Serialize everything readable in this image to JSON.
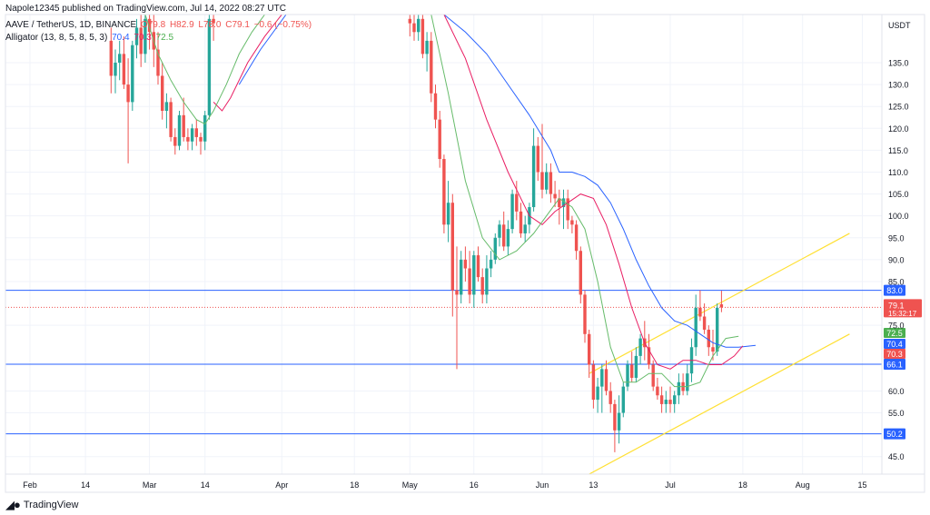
{
  "publish_line": "Napole12345 published on TradingView.com, Jul 14, 2022 08:27 UTC",
  "symbol_line": {
    "name": "AAVE / TetherUS, 1D, BINANCE",
    "o": "O79.8",
    "h": "H82.9",
    "l": "L78.0",
    "c": "C79.1",
    "chg": "−0.6 (−0.75%)"
  },
  "indicator_line": {
    "name": "Alligator (13, 8, 5, 8, 5, 3)",
    "jaw": "70.4",
    "teeth": "70.3",
    "lips": "72.5"
  },
  "footer_brand": "TradingView",
  "colors": {
    "up": "#26a69a",
    "down": "#ef5350",
    "jaw": "#2962ff",
    "teeth": "#e91e63",
    "lips": "#66bb6a",
    "hline": "#2962ff",
    "channel": "#ffe033",
    "price_line": "#ef5350"
  },
  "chart_data": {
    "type": "candlestick",
    "currency": "USDT",
    "ylim": [
      41,
      146
    ],
    "y_ticks": [
      "135.0",
      "130.0",
      "125.0",
      "120.0",
      "115.0",
      "110.0",
      "105.0",
      "100.0",
      "95.0",
      "90.0",
      "85.0",
      "75.0",
      "60.0",
      "55.0",
      "45.0"
    ],
    "x_ticks": [
      {
        "label": "Feb",
        "date": "2022-02-01"
      },
      {
        "label": "14",
        "date": "2022-02-14"
      },
      {
        "label": "Mar",
        "date": "2022-03-01"
      },
      {
        "label": "14",
        "date": "2022-03-14"
      },
      {
        "label": "Apr",
        "date": "2022-04-01"
      },
      {
        "label": "18",
        "date": "2022-04-18"
      },
      {
        "label": "May",
        "date": "2022-05-01"
      },
      {
        "label": "16",
        "date": "2022-05-16"
      },
      {
        "label": "Jun",
        "date": "2022-06-01"
      },
      {
        "label": "13",
        "date": "2022-06-13"
      },
      {
        "label": "Jul",
        "date": "2022-07-01"
      },
      {
        "label": "18",
        "date": "2022-07-18"
      },
      {
        "label": "Aug",
        "date": "2022-08-01"
      },
      {
        "label": "15",
        "date": "2022-08-15"
      }
    ],
    "horizontal_lines": [
      {
        "value": 83.0,
        "label": "83.0"
      },
      {
        "value": 66.1,
        "label": "66.1"
      },
      {
        "value": 50.2,
        "label": "50.2"
      }
    ],
    "price_label": {
      "value": 79.1,
      "label": "79.1",
      "countdown": "15:32:17"
    },
    "alligator_labels": [
      {
        "name": "Lips",
        "value": 72.5,
        "label": "72.5"
      },
      {
        "name": "Jaw",
        "value": 70.4,
        "label": "70.4"
      },
      {
        "name": "Teeth",
        "value": 70.3,
        "label": "70.3"
      }
    ],
    "channel": {
      "upper": [
        {
          "date": "2022-06-12",
          "value": 64.0
        },
        {
          "date": "2022-08-12",
          "value": 96.0
        }
      ],
      "lower": [
        {
          "date": "2022-06-12",
          "value": 41.0
        },
        {
          "date": "2022-08-12",
          "value": 73.0
        }
      ]
    },
    "candles": [
      [
        "2022-02-20",
        140,
        143,
        128,
        132
      ],
      [
        "2022-02-21",
        132,
        138,
        128,
        135
      ],
      [
        "2022-02-22",
        135,
        140,
        131,
        137
      ],
      [
        "2022-02-23",
        137,
        141,
        129,
        130
      ],
      [
        "2022-02-24",
        130,
        136,
        112,
        126
      ],
      [
        "2022-02-25",
        126,
        140,
        124,
        139
      ],
      [
        "2022-02-26",
        139,
        145,
        136,
        143
      ],
      [
        "2022-02-27",
        143,
        146,
        134,
        137
      ],
      [
        "2022-02-28",
        137,
        146,
        135,
        145
      ],
      [
        "2022-03-01",
        145,
        146,
        138,
        142
      ],
      [
        "2022-03-02",
        142,
        146,
        134,
        138
      ],
      [
        "2022-03-03",
        138,
        142,
        130,
        132
      ],
      [
        "2022-03-04",
        132,
        135,
        122,
        124
      ],
      [
        "2022-03-05",
        124,
        128,
        120,
        126
      ],
      [
        "2022-03-06",
        126,
        127,
        117,
        118
      ],
      [
        "2022-03-07",
        118,
        120,
        114,
        116
      ],
      [
        "2022-03-08",
        116,
        124,
        115,
        123
      ],
      [
        "2022-03-09",
        123,
        127,
        117,
        118
      ],
      [
        "2022-03-10",
        118,
        120,
        115,
        117
      ],
      [
        "2022-03-11",
        117,
        121,
        115,
        120
      ],
      [
        "2022-03-12",
        120,
        122,
        116,
        118
      ],
      [
        "2022-03-13",
        118,
        119,
        114,
        117
      ],
      [
        "2022-03-14",
        117,
        124,
        115,
        123
      ],
      [
        "2022-03-15",
        123,
        146,
        122,
        145
      ],
      [
        "2022-03-16",
        145,
        146,
        140,
        144
      ],
      [
        "2022-05-01",
        145,
        146,
        141,
        144
      ],
      [
        "2022-05-02",
        144,
        146,
        140,
        142
      ],
      [
        "2022-05-03",
        142,
        146,
        140,
        145
      ],
      [
        "2022-05-04",
        145,
        146,
        136,
        137
      ],
      [
        "2022-05-05",
        137,
        142,
        133,
        140
      ],
      [
        "2022-05-06",
        140,
        142,
        126,
        128
      ],
      [
        "2022-05-07",
        128,
        130,
        120,
        122
      ],
      [
        "2022-05-08",
        122,
        124,
        111,
        113
      ],
      [
        "2022-05-09",
        113,
        114,
        96,
        98
      ],
      [
        "2022-05-10",
        98,
        108,
        94,
        103
      ],
      [
        "2022-05-11",
        103,
        105,
        77,
        83
      ],
      [
        "2022-05-12",
        83,
        93,
        65,
        82
      ],
      [
        "2022-05-13",
        82,
        92,
        80,
        90
      ],
      [
        "2022-05-14",
        90,
        93,
        85,
        88
      ],
      [
        "2022-05-15",
        88,
        92,
        80,
        82
      ],
      [
        "2022-05-16",
        82,
        92,
        79,
        91
      ],
      [
        "2022-05-17",
        91,
        93,
        85,
        86
      ],
      [
        "2022-05-18",
        86,
        88,
        80,
        82
      ],
      [
        "2022-05-19",
        82,
        91,
        80,
        88
      ],
      [
        "2022-05-20",
        88,
        92,
        86,
        90
      ],
      [
        "2022-05-21",
        90,
        96,
        89,
        95
      ],
      [
        "2022-05-22",
        95,
        99,
        93,
        98
      ],
      [
        "2022-05-23",
        98,
        101,
        92,
        93
      ],
      [
        "2022-05-24",
        93,
        99,
        91,
        97
      ],
      [
        "2022-05-25",
        97,
        106,
        96,
        105
      ],
      [
        "2022-05-26",
        105,
        108,
        99,
        101
      ],
      [
        "2022-05-27",
        101,
        103,
        95,
        96
      ],
      [
        "2022-05-28",
        96,
        100,
        94,
        98
      ],
      [
        "2022-05-29",
        98,
        103,
        96,
        102
      ],
      [
        "2022-05-30",
        102,
        120,
        101,
        116
      ],
      [
        "2022-05-31",
        116,
        118,
        108,
        110
      ],
      [
        "2022-06-01",
        110,
        121,
        104,
        106
      ],
      [
        "2022-06-02",
        106,
        112,
        105,
        110
      ],
      [
        "2022-06-03",
        110,
        112,
        103,
        105
      ],
      [
        "2022-06-04",
        105,
        108,
        102,
        104
      ],
      [
        "2022-06-05",
        104,
        106,
        98,
        102
      ],
      [
        "2022-06-06",
        102,
        106,
        97,
        104
      ],
      [
        "2022-06-07",
        104,
        106,
        97,
        99
      ],
      [
        "2022-06-08",
        99,
        100,
        96,
        98
      ],
      [
        "2022-06-09",
        98,
        99,
        90,
        92
      ],
      [
        "2022-06-10",
        92,
        93,
        80,
        82
      ],
      [
        "2022-06-11",
        82,
        83,
        71,
        73
      ],
      [
        "2022-06-12",
        73,
        74,
        63,
        66
      ],
      [
        "2022-06-13",
        66,
        67,
        56,
        58
      ],
      [
        "2022-06-14",
        58,
        63,
        55,
        61
      ],
      [
        "2022-06-15",
        61,
        66,
        55,
        65
      ],
      [
        "2022-06-16",
        65,
        67,
        59,
        60
      ],
      [
        "2022-06-17",
        60,
        62,
        55,
        57
      ],
      [
        "2022-06-18",
        57,
        58,
        46,
        51
      ],
      [
        "2022-06-19",
        51,
        59,
        48,
        55
      ],
      [
        "2022-06-20",
        55,
        62,
        54,
        61
      ],
      [
        "2022-06-21",
        61,
        67,
        60,
        66
      ],
      [
        "2022-06-22",
        66,
        69,
        62,
        63
      ],
      [
        "2022-06-23",
        63,
        70,
        62,
        68
      ],
      [
        "2022-06-24",
        68,
        73,
        66,
        72
      ],
      [
        "2022-06-25",
        72,
        76,
        67,
        70
      ],
      [
        "2022-06-26",
        70,
        73,
        65,
        66
      ],
      [
        "2022-06-27",
        66,
        67,
        60,
        61
      ],
      [
        "2022-06-28",
        61,
        63,
        58,
        59
      ],
      [
        "2022-06-29",
        59,
        61,
        55,
        57
      ],
      [
        "2022-06-30",
        57,
        60,
        55,
        58
      ],
      [
        "2022-07-01",
        58,
        61,
        55,
        57
      ],
      [
        "2022-07-02",
        57,
        60,
        55,
        59
      ],
      [
        "2022-07-03",
        59,
        64,
        57,
        62
      ],
      [
        "2022-07-04",
        62,
        64,
        59,
        60
      ],
      [
        "2022-07-05",
        60,
        66,
        59,
        64
      ],
      [
        "2022-07-06",
        64,
        72,
        62,
        70
      ],
      [
        "2022-07-07",
        70,
        82,
        68,
        79
      ],
      [
        "2022-07-08",
        79,
        83,
        76,
        77
      ],
      [
        "2022-07-09",
        77,
        80,
        73,
        74
      ],
      [
        "2022-07-10",
        74,
        75,
        68,
        70
      ],
      [
        "2022-07-11",
        70,
        74,
        67,
        69
      ],
      [
        "2022-07-12",
        69,
        80,
        68,
        79
      ],
      [
        "2022-07-13",
        79.8,
        82.9,
        78.0,
        79.1
      ]
    ],
    "alligator": {
      "jaw": [
        [
          "2022-03-22",
          130
        ],
        [
          "2022-03-27",
          138
        ],
        [
          "2022-04-02",
          146
        ],
        [
          "2022-05-09",
          146
        ],
        [
          "2022-05-14",
          142
        ],
        [
          "2022-05-19",
          137
        ],
        [
          "2022-05-24",
          130
        ],
        [
          "2022-05-29",
          123
        ],
        [
          "2022-06-03",
          115
        ],
        [
          "2022-06-05",
          110
        ],
        [
          "2022-06-08",
          110
        ],
        [
          "2022-06-11",
          109
        ],
        [
          "2022-06-14",
          107
        ],
        [
          "2022-06-17",
          103
        ],
        [
          "2022-06-20",
          97
        ],
        [
          "2022-06-23",
          90
        ],
        [
          "2022-06-26",
          84
        ],
        [
          "2022-06-29",
          79
        ],
        [
          "2022-07-02",
          76
        ],
        [
          "2022-07-05",
          75
        ],
        [
          "2022-07-08",
          73
        ],
        [
          "2022-07-11",
          71
        ],
        [
          "2022-07-14",
          70
        ],
        [
          "2022-07-17",
          70
        ],
        [
          "2022-07-21",
          70.4
        ]
      ],
      "teeth": [
        [
          "2022-03-16",
          126
        ],
        [
          "2022-03-18",
          124
        ],
        [
          "2022-03-20",
          127
        ],
        [
          "2022-03-24",
          135
        ],
        [
          "2022-03-28",
          141
        ],
        [
          "2022-04-01",
          146
        ],
        [
          "2022-05-09",
          146
        ],
        [
          "2022-05-14",
          136
        ],
        [
          "2022-05-19",
          122
        ],
        [
          "2022-05-24",
          110
        ],
        [
          "2022-05-29",
          100
        ],
        [
          "2022-06-01",
          98
        ],
        [
          "2022-06-04",
          101
        ],
        [
          "2022-06-07",
          103
        ],
        [
          "2022-06-10",
          105
        ],
        [
          "2022-06-13",
          104
        ],
        [
          "2022-06-16",
          98
        ],
        [
          "2022-06-19",
          89
        ],
        [
          "2022-06-22",
          79
        ],
        [
          "2022-06-25",
          71
        ],
        [
          "2022-06-28",
          66
        ],
        [
          "2022-07-01",
          65
        ],
        [
          "2022-07-04",
          67
        ],
        [
          "2022-07-07",
          67
        ],
        [
          "2022-07-10",
          66
        ],
        [
          "2022-07-13",
          66
        ],
        [
          "2022-07-16",
          68
        ],
        [
          "2022-07-18",
          70.3
        ]
      ],
      "lips": [
        [
          "2022-02-28",
          146
        ],
        [
          "2022-03-03",
          137
        ],
        [
          "2022-03-06",
          131
        ],
        [
          "2022-03-09",
          126
        ],
        [
          "2022-03-12",
          122
        ],
        [
          "2022-03-14",
          121
        ],
        [
          "2022-03-16",
          124
        ],
        [
          "2022-03-19",
          130
        ],
        [
          "2022-03-22",
          137
        ],
        [
          "2022-03-25",
          142
        ],
        [
          "2022-03-28",
          146
        ],
        [
          "2022-05-06",
          146
        ],
        [
          "2022-05-10",
          128
        ],
        [
          "2022-05-14",
          108
        ],
        [
          "2022-05-18",
          95
        ],
        [
          "2022-05-22",
          90
        ],
        [
          "2022-05-26",
          92
        ],
        [
          "2022-05-30",
          96
        ],
        [
          "2022-06-02",
          100
        ],
        [
          "2022-06-05",
          104
        ],
        [
          "2022-06-08",
          102
        ],
        [
          "2022-06-11",
          97
        ],
        [
          "2022-06-14",
          85
        ],
        [
          "2022-06-17",
          70
        ],
        [
          "2022-06-20",
          62
        ],
        [
          "2022-06-23",
          62
        ],
        [
          "2022-06-26",
          64
        ],
        [
          "2022-06-29",
          64
        ],
        [
          "2022-07-02",
          61
        ],
        [
          "2022-07-05",
          61
        ],
        [
          "2022-07-08",
          62
        ],
        [
          "2022-07-11",
          68
        ],
        [
          "2022-07-14",
          72
        ],
        [
          "2022-07-17",
          72.5
        ]
      ]
    }
  }
}
